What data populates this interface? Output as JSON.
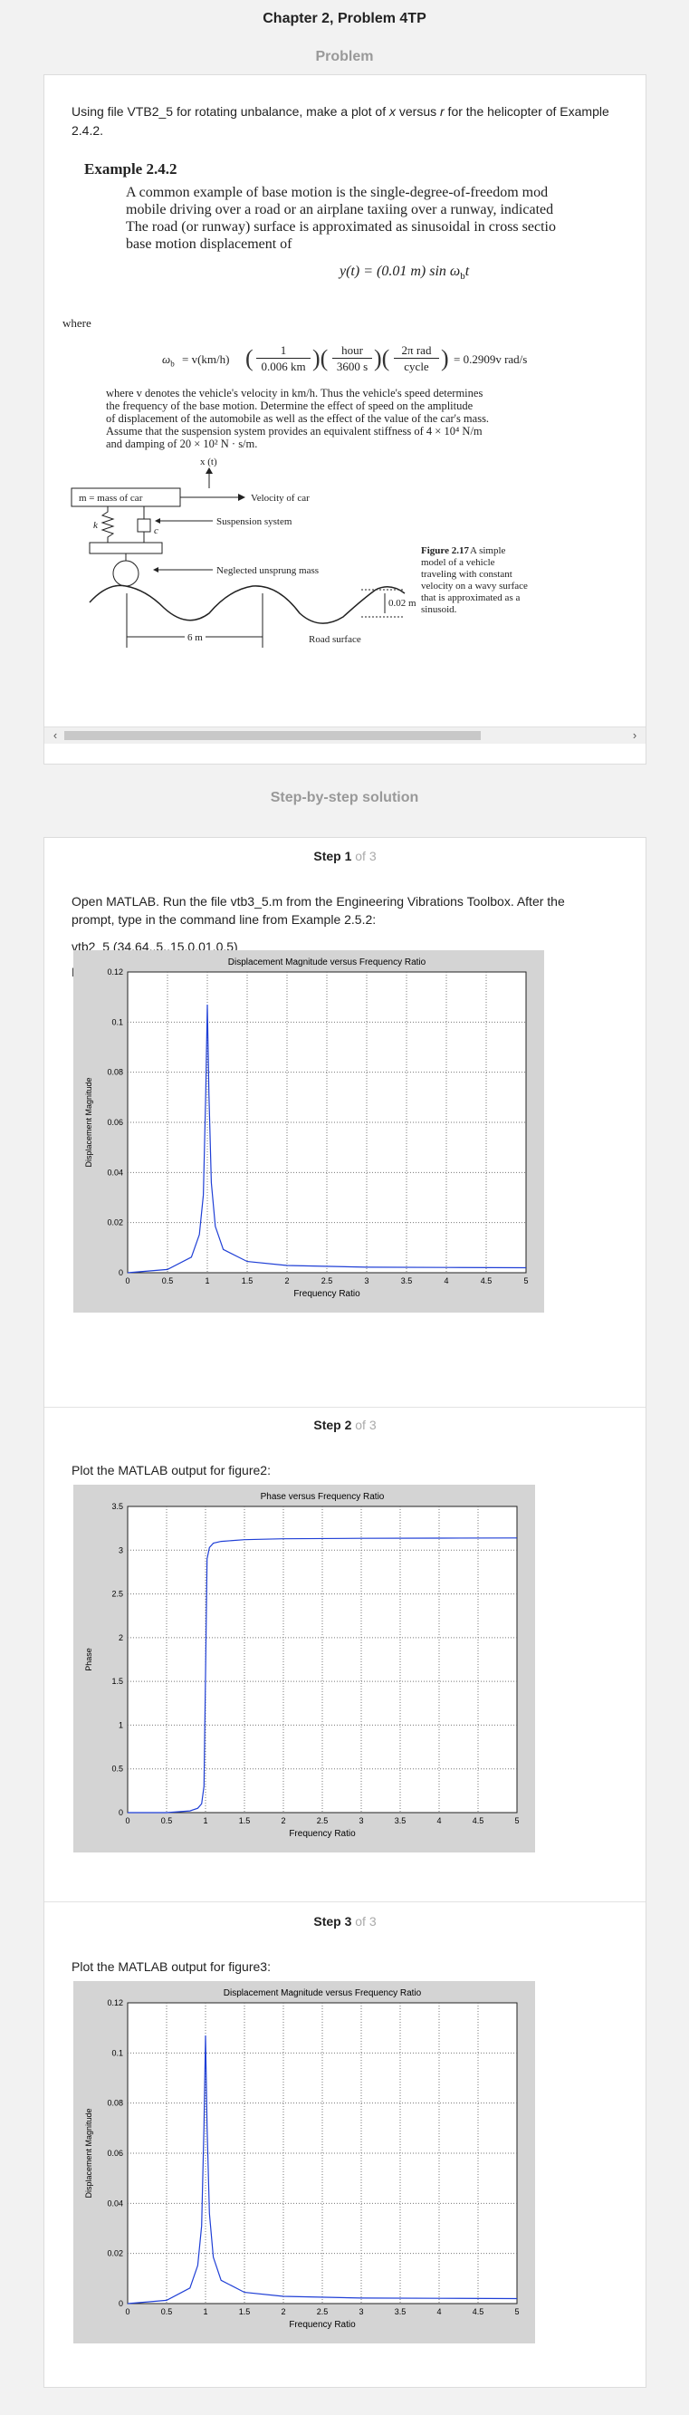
{
  "header": {
    "title": "Chapter 2, Problem 4TP",
    "problem_label": "Problem",
    "solution_label": "Step-by-step solution"
  },
  "problem": {
    "text_html_parts": [
      "Using file VTB2_5 for rotating unbalance, make a plot of ",
      "x",
      " versus ",
      "r",
      " for the helicopter of Example 2.4.2."
    ],
    "example_title": "Example 2.4.2",
    "example_para": [
      "A common example of base motion is the single-degree-of-freedom mod",
      "mobile driving over a road or an airplane taxiing over a runway, indicated",
      "The road (or runway) surface is approximated as sinusoidal in cross sectio",
      "base motion displacement of"
    ],
    "equation1": "y(t) = (0.01 m) sin ω",
    "where": "where",
    "equation2_lhs": "ω",
    "equation2_text": "= v(km/h)",
    "equation2_result": "= 0.2909v rad/s",
    "frac1_num": "1",
    "frac1_den": "0.006 km",
    "frac2_num": "hour",
    "frac2_den": "3600 s",
    "frac3_num": "2π rad",
    "frac3_den": "cycle",
    "body_para": [
      "where v denotes the vehicle's velocity in km/h. Thus the vehicle's speed determines",
      "the frequency of the base motion. Determine the effect of speed on the amplitude",
      "of displacement of the automobile as well as the effect of the value of the car's mass.",
      "Assume that the suspension system provides an equivalent stiffness of 4 × 10⁴ N/m",
      "and damping of 20 × 10² N · s/m."
    ],
    "figure": {
      "xt_label": "x (t)",
      "mass_label": "m = mass of car",
      "velocity_label": "Velocity of car",
      "k_label": "k",
      "c_label": "c",
      "suspension_label": "Suspension system",
      "unsprung_label": "Neglected unsprung mass",
      "amp_label": "0.02 m",
      "wavelength_label": "6 m",
      "road_label": "Road surface",
      "caption_bold": "Figure 2.17",
      "caption_lines": [
        "A simple",
        "model of a vehicle",
        "traveling with constant",
        "velocity on a wavy surface",
        "that is approximated as a",
        "sinusoid."
      ]
    }
  },
  "steps": [
    {
      "label": "Step 1",
      "of": "of 3",
      "lines": [
        "Open MATLAB. Run the file vtb3_5.m from the Engineering Vibrations Toolbox. After the",
        "prompt, type in the command line from Example 2.5.2:",
        "vtb2_5 (34.64,.5,.15,0.01,0,5)",
        "Plot the MATLAB output for figure1:"
      ]
    },
    {
      "label": "Step 2",
      "of": "of 3",
      "lines": [
        "Plot the MATLAB output for figure2:"
      ]
    },
    {
      "label": "Step 3",
      "of": "of 3",
      "lines": [
        "Plot the MATLAB output for figure3:"
      ]
    }
  ],
  "chart_data": [
    {
      "type": "line",
      "title": "Displacement Magnitude versus Frequency Ratio",
      "xlabel": "Frequency Ratio",
      "ylabel": "Displacement Magnitude",
      "xlim": [
        0,
        5
      ],
      "ylim": [
        0,
        0.12
      ],
      "xticks": [
        "0",
        "0.5",
        "1",
        "1.5",
        "2",
        "2.5",
        "3",
        "3.5",
        "4",
        "4.5",
        "5"
      ],
      "yticks": [
        "0",
        "0.02",
        "0.04",
        "0.06",
        "0.08",
        "0.1",
        "0.12"
      ],
      "grid": true,
      "color": "#1f3fd6",
      "series": [
        {
          "x": [
            0,
            0.5,
            0.8,
            0.9,
            0.95,
            0.98,
            1.0,
            1.02,
            1.05,
            1.1,
            1.2,
            1.5,
            2,
            3,
            4,
            5
          ],
          "values": [
            0,
            0.0013,
            0.0062,
            0.0152,
            0.031,
            0.071,
            0.107,
            0.071,
            0.036,
            0.0185,
            0.0093,
            0.0045,
            0.0029,
            0.0022,
            0.0021,
            0.002
          ]
        }
      ]
    },
    {
      "type": "line",
      "title": "Phase versus Frequency Ratio",
      "xlabel": "Frequency Ratio",
      "ylabel": "Phase",
      "xlim": [
        0,
        5
      ],
      "ylim": [
        0,
        3.5
      ],
      "xticks": [
        "0",
        "0.5",
        "1",
        "1.5",
        "2",
        "2.5",
        "3",
        "3.5",
        "4",
        "4.5",
        "5"
      ],
      "yticks": [
        "0",
        "0.5",
        "1",
        "1.5",
        "2",
        "2.5",
        "3",
        "3.5"
      ],
      "grid": true,
      "color": "#1f3fd6",
      "series": [
        {
          "x": [
            0,
            0.5,
            0.8,
            0.9,
            0.95,
            0.98,
            1.0,
            1.02,
            1.05,
            1.1,
            1.2,
            1.5,
            2,
            3,
            4,
            5
          ],
          "values": [
            0,
            0.0,
            0.02,
            0.05,
            0.1,
            0.3,
            1.57,
            2.9,
            3.03,
            3.08,
            3.1,
            3.12,
            3.13,
            3.135,
            3.138,
            3.14
          ]
        }
      ]
    },
    {
      "type": "line",
      "title": "Displacement Magnitude versus Frequency Ratio",
      "xlabel": "Frequency Ratio",
      "ylabel": "Displacement Magnitude",
      "xlim": [
        0,
        5
      ],
      "ylim": [
        0,
        0.12
      ],
      "xticks": [
        "0",
        "0.5",
        "1",
        "1.5",
        "2",
        "2.5",
        "3",
        "3.5",
        "4",
        "4.5",
        "5"
      ],
      "yticks": [
        "0",
        "0.02",
        "0.04",
        "0.06",
        "0.08",
        "0.1",
        "0.12"
      ],
      "grid": true,
      "color": "#1f3fd6",
      "series": [
        {
          "x": [
            0,
            0.5,
            0.8,
            0.9,
            0.95,
            0.98,
            1.0,
            1.02,
            1.05,
            1.1,
            1.2,
            1.5,
            2,
            3,
            4,
            5
          ],
          "values": [
            0,
            0.0013,
            0.0062,
            0.0152,
            0.031,
            0.071,
            0.107,
            0.071,
            0.036,
            0.0185,
            0.0093,
            0.0045,
            0.0029,
            0.0022,
            0.0021,
            0.002
          ]
        }
      ]
    }
  ]
}
